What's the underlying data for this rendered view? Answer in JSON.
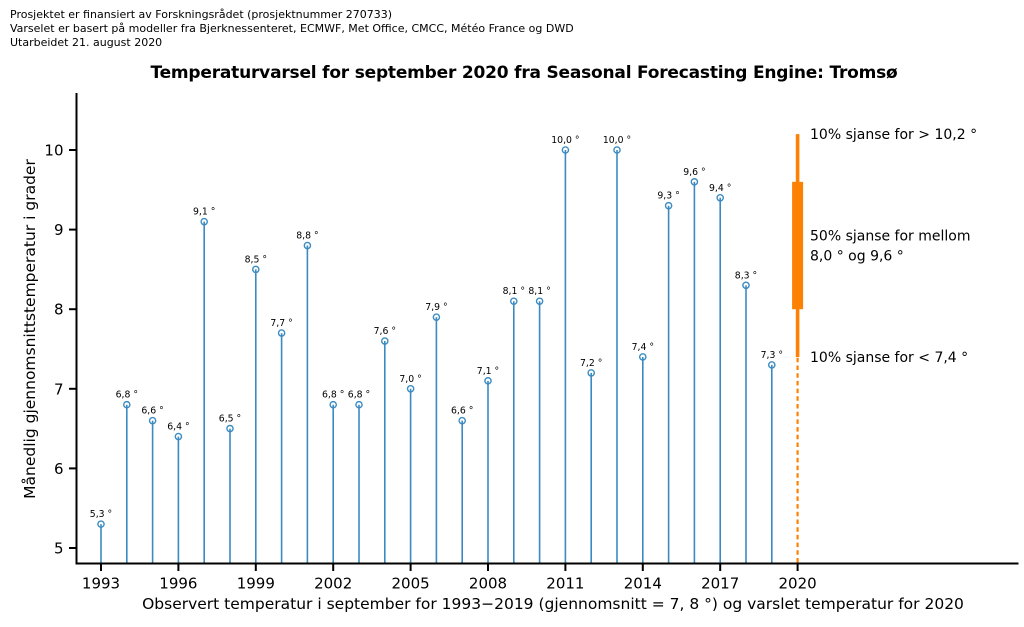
{
  "header": {
    "line1": "Prosjektet er finansiert av Forskningsrådet (prosjektnummer 270733)",
    "line2": "Varselet er basert på modeller fra Bjerknessenteret, ECMWF, Met Office, CMCC, Météo France og DWD",
    "line3": "Utarbeidet 21. august 2020"
  },
  "chart_data": {
    "type": "stem",
    "title": "Temperaturvarsel for september 2020 fra Seasonal Forecasting Engine: Tromsø",
    "xlabel": "Observert temperatur i september for 1993−2019 (gjennomsnitt = 7, 8 °) og varslet temperatur for 2020",
    "ylabel": "Månedlig gjennomsnittstemperatur i grader",
    "x": [
      1993,
      1994,
      1995,
      1996,
      1997,
      1998,
      1999,
      2000,
      2001,
      2002,
      2003,
      2004,
      2005,
      2006,
      2007,
      2008,
      2009,
      2010,
      2011,
      2012,
      2013,
      2014,
      2015,
      2016,
      2017,
      2018,
      2019
    ],
    "values": [
      5.3,
      6.8,
      6.6,
      6.4,
      9.1,
      6.5,
      8.5,
      7.7,
      8.8,
      6.8,
      6.8,
      7.6,
      7.0,
      7.9,
      6.6,
      7.1,
      8.1,
      8.1,
      10.0,
      7.2,
      10.0,
      7.4,
      9.3,
      9.6,
      9.4,
      8.3,
      7.3
    ],
    "point_labels": [
      "5,3 °",
      "6,8 °",
      "6,6 °",
      "6,4 °",
      "9,1 °",
      "6,5 °",
      "8,5 °",
      "7,7 °",
      "8,8 °",
      "6,8 °",
      "6,8 °",
      "7,6 °",
      "7,0 °",
      "7,9 °",
      "6,6 °",
      "7,1 °",
      "8,1 °",
      "8,1 °",
      "10,0 °",
      "7,2 °",
      "10,0 °",
      "7,4 °",
      "9,3 °",
      "9,6 °",
      "9,4 °",
      "8,3 °",
      "7,3 °"
    ],
    "xticks": [
      1993,
      1996,
      1999,
      2002,
      2005,
      2008,
      2011,
      2014,
      2017,
      2020
    ],
    "xtick_labels": [
      "1993",
      "1996",
      "1999",
      "2002",
      "2005",
      "2008",
      "2011",
      "2014",
      "2017",
      "2020"
    ],
    "yticks": [
      5,
      6,
      7,
      8,
      9,
      10
    ],
    "ytick_labels": [
      "5",
      "6",
      "7",
      "8",
      "9",
      "10"
    ],
    "ylim": [
      4.8,
      10.9
    ],
    "xlim": [
      1992,
      2028.6
    ],
    "grid": false,
    "legend": "none",
    "mean_1993_2019": 7.8,
    "forecast": {
      "year": 2020,
      "p90_upper": 10.2,
      "p50_range": [
        8.0,
        9.6
      ],
      "p10_lower": 7.4,
      "annotations": [
        {
          "lines": [
            "10% sjanse for > 10,2 °"
          ],
          "at_value": 10.2
        },
        {
          "lines": [
            "50% sjanse for mellom",
            "8,0 °  og 9,6 °"
          ],
          "at_value": 8.8
        },
        {
          "lines": [
            "10% sjanse for < 7,4 °"
          ],
          "at_value": 7.4
        }
      ]
    },
    "colors": {
      "stem": "#3b8bc2",
      "forecast": "#fd8204",
      "axis": "#000000",
      "text": "#000000"
    }
  }
}
